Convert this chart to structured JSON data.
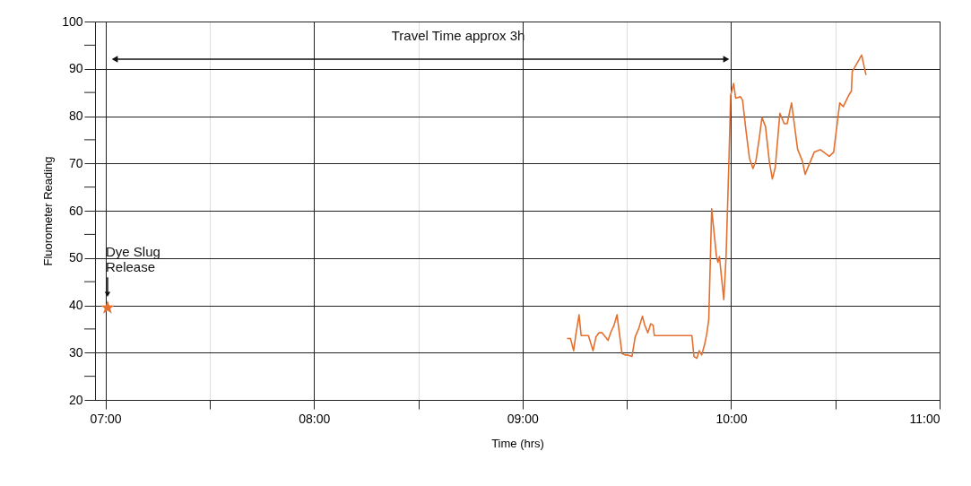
{
  "chart_data": {
    "type": "line",
    "xlabel": "Time (hrs)",
    "ylabel": "Fluorometer Reading",
    "xlim": [
      6.95,
      11.0
    ],
    "xticks": [
      {
        "value": 7,
        "label": "07:00"
      },
      {
        "value": 7.5,
        "label": null
      },
      {
        "value": 8,
        "label": "08:00"
      },
      {
        "value": 8.5,
        "label": null
      },
      {
        "value": 9,
        "label": "09:00"
      },
      {
        "value": 9.5,
        "label": null
      },
      {
        "value": 10,
        "label": "10:00"
      },
      {
        "value": 10.5,
        "label": null
      },
      {
        "value": 11,
        "label": "11:00"
      }
    ],
    "ylim": [
      20,
      100
    ],
    "yticks": [
      20,
      {
        "value": 25,
        "label": null
      },
      30,
      {
        "value": 35,
        "label": null
      },
      40,
      {
        "value": 45,
        "label": null
      },
      50,
      {
        "value": 55,
        "label": null
      },
      60,
      {
        "value": 65,
        "label": null
      },
      70,
      {
        "value": 75,
        "label": null
      },
      80,
      {
        "value": 85,
        "label": null
      },
      90,
      {
        "value": 95,
        "label": null
      },
      100
    ],
    "grid": true,
    "line_style": "solid",
    "series": [
      {
        "color": "#e4702f",
        "marker": "none",
        "x": [
          9.213,
          9.23,
          9.245,
          9.256,
          9.271,
          9.281,
          9.316,
          9.338,
          9.352,
          9.367,
          9.381,
          9.41,
          9.425,
          9.439,
          9.453,
          9.477,
          9.491,
          9.506,
          9.525,
          9.54,
          9.558,
          9.575,
          9.586,
          9.601,
          9.615,
          9.626,
          9.632,
          9.812,
          9.822,
          9.836,
          9.847,
          9.859,
          9.873,
          9.883,
          9.893,
          9.907,
          9.93,
          9.937,
          9.944,
          9.965,
          9.976,
          9.99,
          9.998,
          10.012,
          10.022,
          10.045,
          10.055,
          10.07,
          10.088,
          10.105,
          10.119,
          10.136,
          10.148,
          10.165,
          10.183,
          10.198,
          10.212,
          10.234,
          10.255,
          10.269,
          10.29,
          10.319,
          10.342,
          10.355,
          10.399,
          10.428,
          10.471,
          10.492,
          10.521,
          10.538,
          10.564,
          10.577,
          10.581,
          10.626,
          10.647
        ],
        "values": [
          33,
          33,
          30.4,
          33.9,
          38,
          33.6,
          33.6,
          30.4,
          33.3,
          34.2,
          34.2,
          32.6,
          34.5,
          35.8,
          38,
          29.8,
          29.5,
          29.5,
          29.2,
          33.3,
          35.2,
          37.7,
          35.8,
          34.2,
          36.1,
          35.8,
          33.6,
          33.6,
          29.2,
          28.8,
          30.4,
          29.5,
          31.7,
          33.9,
          37,
          60.4,
          50.3,
          49.1,
          50.3,
          41.2,
          50.3,
          71.1,
          84.4,
          86.9,
          83.8,
          84.1,
          83.4,
          77.5,
          71.1,
          68.9,
          70.5,
          75.6,
          79.7,
          77.8,
          70.5,
          66.7,
          69.2,
          80.6,
          78.4,
          78.4,
          82.8,
          73,
          70.5,
          67.7,
          72.4,
          72.9,
          71.5,
          72.4,
          82.8,
          82,
          84.4,
          85.3,
          89.4,
          92.9,
          88.7
        ]
      },
      {
        "type": "scatter",
        "color": "#e4702f",
        "marker": "star",
        "x": [
          7.01
        ],
        "values": [
          39.5
        ]
      }
    ],
    "annotations": [
      "Travel Time approx 3h",
      {
        "text": "Dye Slug Release",
        "x": 7.01,
        "y": 39.5
      }
    ]
  }
}
